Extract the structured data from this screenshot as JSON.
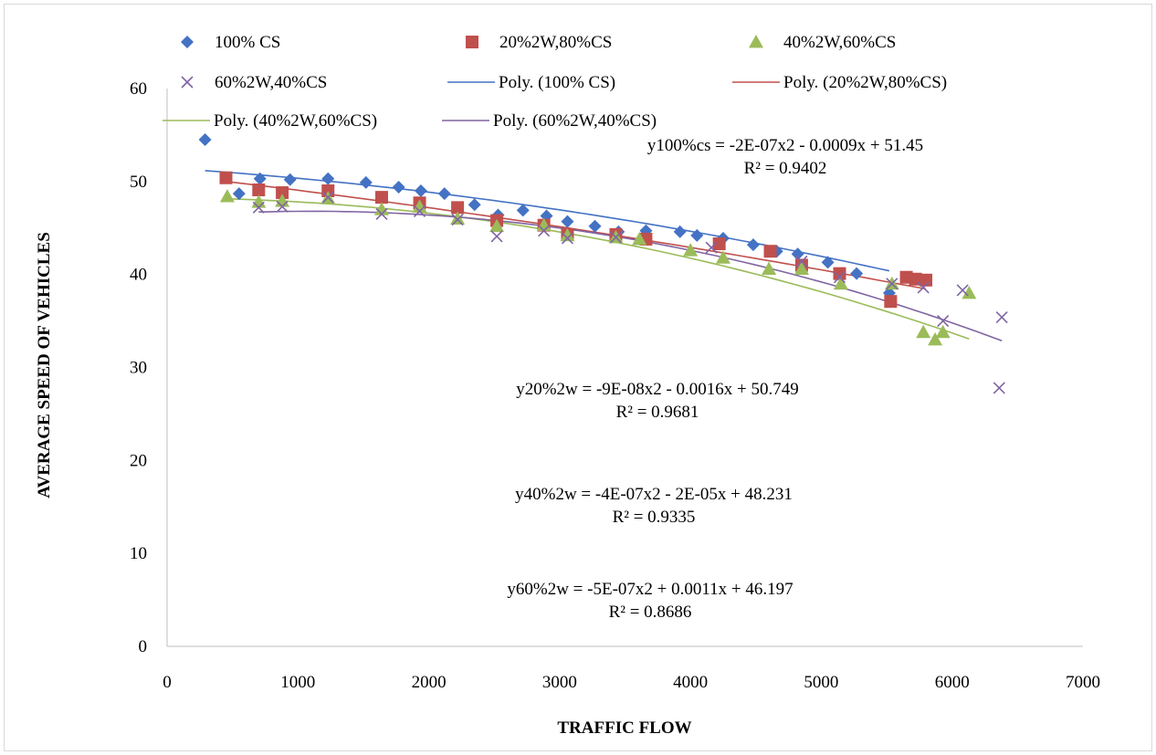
{
  "chart_data": {
    "type": "scatter",
    "xlabel": "TRAFFIC FLOW",
    "ylabel": "AVERAGE SPEED  OF  VEHICLES",
    "xlim": [
      0,
      7000
    ],
    "ylim": [
      0,
      60
    ],
    "x_ticks": [
      "0",
      "1000",
      "2000",
      "3000",
      "4000",
      "5000",
      "6000",
      "7000"
    ],
    "y_ticks": [
      "0",
      "10",
      "20",
      "30",
      "40",
      "50",
      "60"
    ],
    "grid": false,
    "legend_position": "top",
    "series": [
      {
        "name": "100% CS",
        "marker": "diamond",
        "color": "#4472C4",
        "points": [
          [
            290,
            54.5
          ],
          [
            550,
            48.7
          ],
          [
            710,
            50.3
          ],
          [
            940,
            50.2
          ],
          [
            1230,
            50.3
          ],
          [
            1520,
            49.9
          ],
          [
            1770,
            49.4
          ],
          [
            1940,
            49.0
          ],
          [
            2120,
            48.7
          ],
          [
            2350,
            47.5
          ],
          [
            2530,
            46.4
          ],
          [
            2720,
            46.9
          ],
          [
            2900,
            46.3
          ],
          [
            3060,
            45.7
          ],
          [
            3270,
            45.2
          ],
          [
            3450,
            44.6
          ],
          [
            3660,
            44.7
          ],
          [
            3920,
            44.6
          ],
          [
            4050,
            44.2
          ],
          [
            4250,
            43.9
          ],
          [
            4480,
            43.2
          ],
          [
            4660,
            42.5
          ],
          [
            4820,
            42.2
          ],
          [
            5050,
            41.3
          ],
          [
            5270,
            40.1
          ],
          [
            5520,
            38.0
          ]
        ]
      },
      {
        "name": "20%2W,80%CS",
        "marker": "square",
        "color": "#C0504D",
        "points": [
          [
            450,
            50.4
          ],
          [
            700,
            49.1
          ],
          [
            880,
            48.8
          ],
          [
            1230,
            49.0
          ],
          [
            1640,
            48.3
          ],
          [
            1930,
            47.7
          ],
          [
            2220,
            47.2
          ],
          [
            2520,
            45.8
          ],
          [
            2880,
            45.3
          ],
          [
            3060,
            44.3
          ],
          [
            3430,
            44.3
          ],
          [
            3660,
            43.8
          ],
          [
            4220,
            43.3
          ],
          [
            4610,
            42.5
          ],
          [
            4850,
            41.0
          ],
          [
            5140,
            40.1
          ],
          [
            5530,
            37.1
          ],
          [
            5650,
            39.7
          ],
          [
            5720,
            39.5
          ],
          [
            5800,
            39.4
          ]
        ]
      },
      {
        "name": "40%2W,60%CS",
        "marker": "triangle",
        "color": "#9BBB59",
        "points": [
          [
            460,
            48.4
          ],
          [
            700,
            47.8
          ],
          [
            880,
            47.9
          ],
          [
            1230,
            48.2
          ],
          [
            1640,
            47.0
          ],
          [
            1930,
            47.3
          ],
          [
            2220,
            46.0
          ],
          [
            2520,
            45.2
          ],
          [
            2880,
            45.3
          ],
          [
            3060,
            44.2
          ],
          [
            3430,
            44.0
          ],
          [
            3610,
            43.8
          ],
          [
            4000,
            42.6
          ],
          [
            4250,
            41.8
          ],
          [
            4600,
            40.6
          ],
          [
            4850,
            40.6
          ],
          [
            5150,
            39.0
          ],
          [
            5540,
            39.0
          ],
          [
            5780,
            33.8
          ],
          [
            5870,
            33.0
          ],
          [
            5930,
            33.8
          ],
          [
            6130,
            38.0
          ]
        ]
      },
      {
        "name": "60%2W,40%CS",
        "marker": "x",
        "color": "#8064A2",
        "points": [
          [
            700,
            47.2
          ],
          [
            880,
            47.3
          ],
          [
            1230,
            48.3
          ],
          [
            1640,
            46.5
          ],
          [
            1930,
            46.8
          ],
          [
            2220,
            45.9
          ],
          [
            2520,
            44.1
          ],
          [
            2880,
            44.7
          ],
          [
            3060,
            43.9
          ],
          [
            3430,
            44.0
          ],
          [
            4160,
            42.9
          ],
          [
            4850,
            41.4
          ],
          [
            5140,
            39.7
          ],
          [
            5540,
            39.0
          ],
          [
            5780,
            38.6
          ],
          [
            5930,
            35.0
          ],
          [
            6080,
            38.3
          ],
          [
            6360,
            27.8
          ],
          [
            6380,
            35.4
          ]
        ]
      }
    ],
    "trendlines": [
      {
        "name": "Poly. (100% CS)",
        "color": "#4472C4",
        "coef": [
          -2e-07,
          -0.0009,
          51.45
        ],
        "x_range": [
          290,
          5520
        ]
      },
      {
        "name": "Poly. (20%2W,80%CS)",
        "color": "#C0504D",
        "coef": [
          -9e-08,
          -0.0016,
          50.749
        ],
        "x_range": [
          450,
          5800
        ]
      },
      {
        "name": "Poly. (40%2W,60%CS)",
        "color": "#9BBB59",
        "coef": [
          -4e-07,
          -2e-05,
          48.231
        ],
        "x_range": [
          460,
          6130
        ]
      },
      {
        "name": "Poly. (60%2W,40%CS)",
        "color": "#8064A2",
        "coef": [
          -5e-07,
          0.0011,
          46.197
        ],
        "x_range": [
          700,
          6380
        ]
      }
    ],
    "annotations": [
      {
        "equation": "y100%cs = -2E-07x2 - 0.0009x + 51.45",
        "r2": "R² = 0.9402"
      },
      {
        "equation": "y20%2w = -9E-08x2 - 0.0016x + 50.749",
        "r2": "R² = 0.9681"
      },
      {
        "equation": "y40%2w = -4E-07x2 - 2E-05x + 48.231",
        "r2": "R² = 0.9335"
      },
      {
        "equation": "y60%2w = -5E-07x2 + 0.0011x + 46.197",
        "r2": "R² = 0.8686"
      }
    ]
  }
}
